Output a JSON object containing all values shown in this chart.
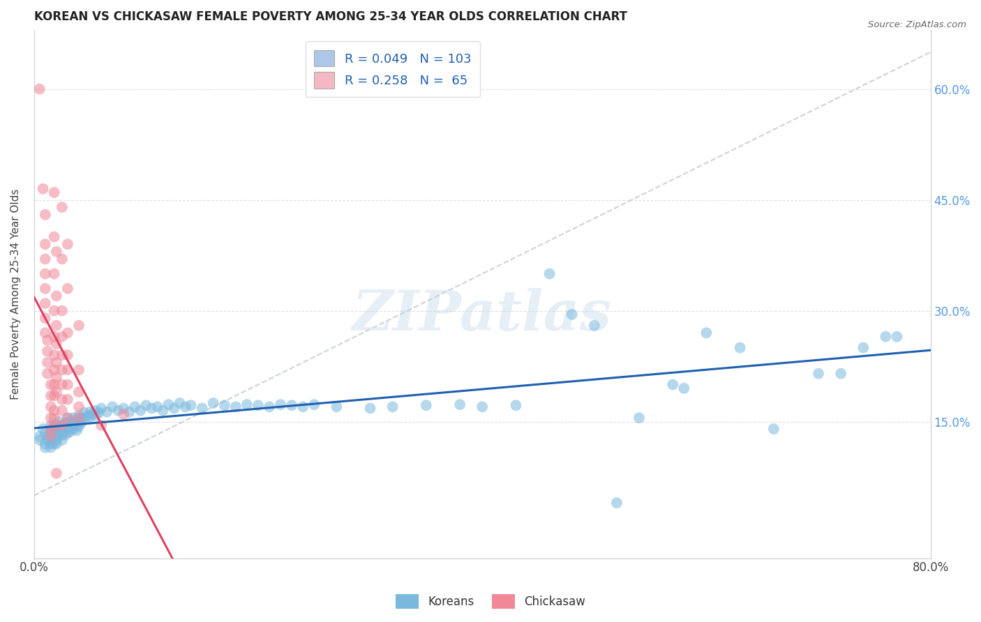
{
  "title": "KOREAN VS CHICKASAW FEMALE POVERTY AMONG 25-34 YEAR OLDS CORRELATION CHART",
  "source": "Source: ZipAtlas.com",
  "ylabel": "Female Poverty Among 25-34 Year Olds",
  "ytick_labels": [
    "15.0%",
    "30.0%",
    "45.0%",
    "60.0%"
  ],
  "ytick_values": [
    0.15,
    0.3,
    0.45,
    0.6
  ],
  "xlim": [
    0.0,
    0.8
  ],
  "ylim": [
    -0.035,
    0.68
  ],
  "watermark": "ZIPatlas",
  "legend_entry1": {
    "R": "0.049",
    "N": "103",
    "color": "#aec6e8"
  },
  "legend_entry2": {
    "R": "0.258",
    "N": " 65",
    "color": "#f4b8c4"
  },
  "korean_color": "#7ab8de",
  "chickasaw_color": "#f08898",
  "korean_line_color": "#2060b0",
  "chickasaw_line_color": "#e04060",
  "trendline_ref_color": "#c0c8d0",
  "background_color": "#ffffff",
  "grid_color": "#d8d8d8",
  "korean_scatter": [
    [
      0.005,
      0.13
    ],
    [
      0.005,
      0.125
    ],
    [
      0.008,
      0.14
    ],
    [
      0.01,
      0.12
    ],
    [
      0.01,
      0.135
    ],
    [
      0.01,
      0.115
    ],
    [
      0.012,
      0.13
    ],
    [
      0.012,
      0.125
    ],
    [
      0.015,
      0.145
    ],
    [
      0.015,
      0.135
    ],
    [
      0.015,
      0.125
    ],
    [
      0.015,
      0.12
    ],
    [
      0.015,
      0.115
    ],
    [
      0.018,
      0.14
    ],
    [
      0.018,
      0.13
    ],
    [
      0.018,
      0.12
    ],
    [
      0.02,
      0.145
    ],
    [
      0.02,
      0.14
    ],
    [
      0.02,
      0.135
    ],
    [
      0.02,
      0.125
    ],
    [
      0.02,
      0.12
    ],
    [
      0.022,
      0.15
    ],
    [
      0.022,
      0.14
    ],
    [
      0.022,
      0.13
    ],
    [
      0.025,
      0.145
    ],
    [
      0.025,
      0.138
    ],
    [
      0.025,
      0.132
    ],
    [
      0.025,
      0.125
    ],
    [
      0.028,
      0.148
    ],
    [
      0.028,
      0.14
    ],
    [
      0.028,
      0.132
    ],
    [
      0.03,
      0.155
    ],
    [
      0.03,
      0.148
    ],
    [
      0.03,
      0.142
    ],
    [
      0.03,
      0.135
    ],
    [
      0.032,
      0.15
    ],
    [
      0.032,
      0.142
    ],
    [
      0.032,
      0.136
    ],
    [
      0.035,
      0.155
    ],
    [
      0.035,
      0.148
    ],
    [
      0.035,
      0.14
    ],
    [
      0.038,
      0.152
    ],
    [
      0.038,
      0.145
    ],
    [
      0.038,
      0.138
    ],
    [
      0.04,
      0.158
    ],
    [
      0.04,
      0.15
    ],
    [
      0.04,
      0.143
    ],
    [
      0.042,
      0.155
    ],
    [
      0.042,
      0.148
    ],
    [
      0.045,
      0.162
    ],
    [
      0.045,
      0.155
    ],
    [
      0.048,
      0.158
    ],
    [
      0.05,
      0.163
    ],
    [
      0.05,
      0.156
    ],
    [
      0.052,
      0.16
    ],
    [
      0.055,
      0.165
    ],
    [
      0.055,
      0.158
    ],
    [
      0.058,
      0.162
    ],
    [
      0.06,
      0.168
    ],
    [
      0.065,
      0.163
    ],
    [
      0.07,
      0.17
    ],
    [
      0.075,
      0.165
    ],
    [
      0.08,
      0.168
    ],
    [
      0.085,
      0.163
    ],
    [
      0.09,
      0.17
    ],
    [
      0.095,
      0.165
    ],
    [
      0.1,
      0.172
    ],
    [
      0.105,
      0.168
    ],
    [
      0.11,
      0.17
    ],
    [
      0.115,
      0.165
    ],
    [
      0.12,
      0.173
    ],
    [
      0.125,
      0.168
    ],
    [
      0.13,
      0.175
    ],
    [
      0.135,
      0.17
    ],
    [
      0.14,
      0.172
    ],
    [
      0.15,
      0.168
    ],
    [
      0.16,
      0.175
    ],
    [
      0.17,
      0.172
    ],
    [
      0.18,
      0.17
    ],
    [
      0.19,
      0.173
    ],
    [
      0.2,
      0.172
    ],
    [
      0.21,
      0.17
    ],
    [
      0.22,
      0.173
    ],
    [
      0.23,
      0.172
    ],
    [
      0.24,
      0.17
    ],
    [
      0.25,
      0.173
    ],
    [
      0.27,
      0.17
    ],
    [
      0.3,
      0.168
    ],
    [
      0.32,
      0.17
    ],
    [
      0.35,
      0.172
    ],
    [
      0.38,
      0.173
    ],
    [
      0.4,
      0.17
    ],
    [
      0.43,
      0.172
    ],
    [
      0.46,
      0.35
    ],
    [
      0.48,
      0.295
    ],
    [
      0.5,
      0.28
    ],
    [
      0.52,
      0.04
    ],
    [
      0.54,
      0.155
    ],
    [
      0.57,
      0.2
    ],
    [
      0.58,
      0.195
    ],
    [
      0.6,
      0.27
    ],
    [
      0.63,
      0.25
    ],
    [
      0.66,
      0.14
    ],
    [
      0.7,
      0.215
    ],
    [
      0.72,
      0.215
    ],
    [
      0.74,
      0.25
    ],
    [
      0.76,
      0.265
    ],
    [
      0.77,
      0.265
    ]
  ],
  "chickasaw_scatter": [
    [
      0.005,
      0.6
    ],
    [
      0.008,
      0.465
    ],
    [
      0.01,
      0.43
    ],
    [
      0.01,
      0.39
    ],
    [
      0.01,
      0.37
    ],
    [
      0.01,
      0.35
    ],
    [
      0.01,
      0.33
    ],
    [
      0.01,
      0.31
    ],
    [
      0.01,
      0.29
    ],
    [
      0.01,
      0.27
    ],
    [
      0.012,
      0.26
    ],
    [
      0.012,
      0.245
    ],
    [
      0.012,
      0.23
    ],
    [
      0.012,
      0.215
    ],
    [
      0.015,
      0.2
    ],
    [
      0.015,
      0.185
    ],
    [
      0.015,
      0.17
    ],
    [
      0.015,
      0.155
    ],
    [
      0.015,
      0.14
    ],
    [
      0.015,
      0.13
    ],
    [
      0.018,
      0.46
    ],
    [
      0.018,
      0.4
    ],
    [
      0.018,
      0.35
    ],
    [
      0.018,
      0.3
    ],
    [
      0.018,
      0.265
    ],
    [
      0.018,
      0.24
    ],
    [
      0.018,
      0.22
    ],
    [
      0.018,
      0.2
    ],
    [
      0.018,
      0.185
    ],
    [
      0.018,
      0.165
    ],
    [
      0.018,
      0.155
    ],
    [
      0.018,
      0.145
    ],
    [
      0.02,
      0.38
    ],
    [
      0.02,
      0.32
    ],
    [
      0.02,
      0.28
    ],
    [
      0.02,
      0.255
    ],
    [
      0.02,
      0.23
    ],
    [
      0.02,
      0.21
    ],
    [
      0.02,
      0.19
    ],
    [
      0.02,
      0.08
    ],
    [
      0.025,
      0.44
    ],
    [
      0.025,
      0.37
    ],
    [
      0.025,
      0.3
    ],
    [
      0.025,
      0.265
    ],
    [
      0.025,
      0.24
    ],
    [
      0.025,
      0.22
    ],
    [
      0.025,
      0.2
    ],
    [
      0.025,
      0.18
    ],
    [
      0.025,
      0.165
    ],
    [
      0.025,
      0.145
    ],
    [
      0.03,
      0.39
    ],
    [
      0.03,
      0.33
    ],
    [
      0.03,
      0.27
    ],
    [
      0.03,
      0.24
    ],
    [
      0.03,
      0.22
    ],
    [
      0.03,
      0.2
    ],
    [
      0.03,
      0.18
    ],
    [
      0.03,
      0.155
    ],
    [
      0.04,
      0.28
    ],
    [
      0.04,
      0.22
    ],
    [
      0.04,
      0.19
    ],
    [
      0.04,
      0.17
    ],
    [
      0.04,
      0.155
    ],
    [
      0.06,
      0.145
    ],
    [
      0.08,
      0.16
    ]
  ]
}
